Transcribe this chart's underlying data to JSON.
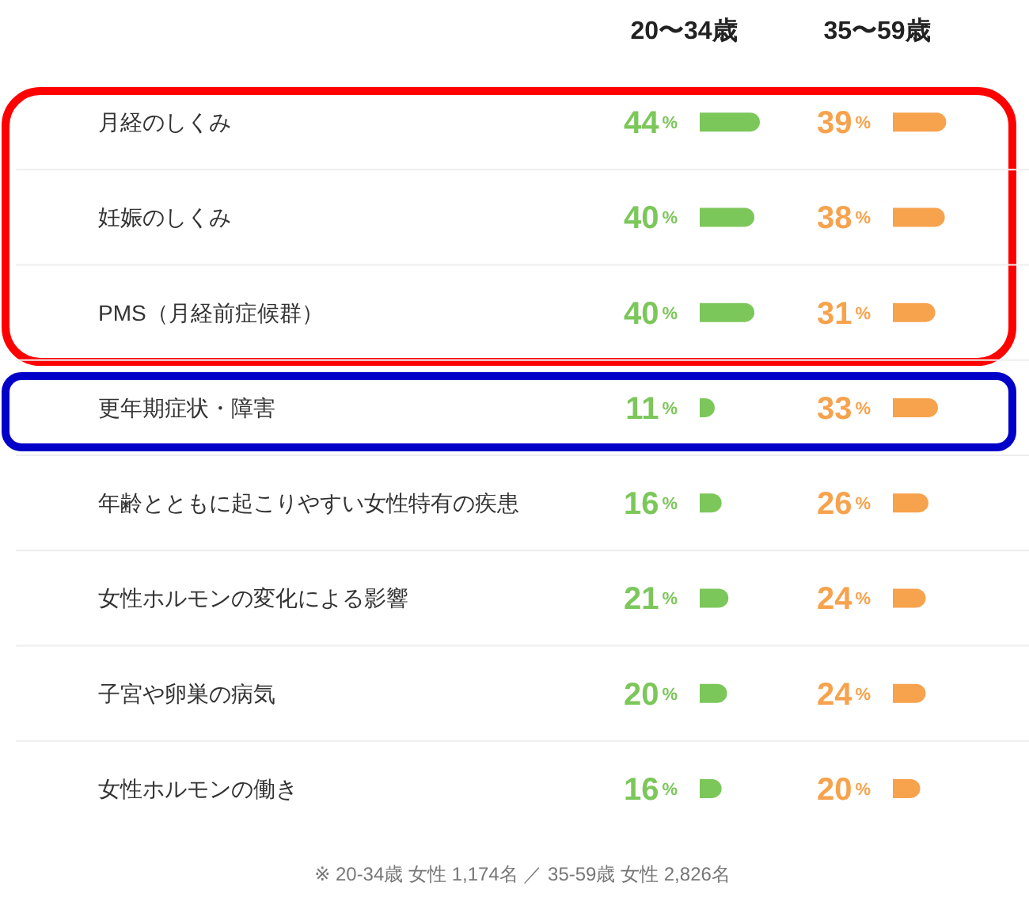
{
  "chart_data": [
    {
      "type": "bar",
      "orientation": "horizontal",
      "title": "20〜34歳",
      "tick_labels": "y",
      "grid": "y",
      "categories": [
        "月経のしくみ",
        "妊娠のしくみ",
        "PMS（月経前症候群）",
        "更年期症状・障害",
        "年齢とともに起こりやすい女性特有の疾患",
        "女性ホルモンの変化による影響",
        "子宮や卵巣の病気",
        "女性ホルモンの働き"
      ],
      "series": [
        {
          "color": "#7cc75a",
          "values": [
            44,
            40,
            40,
            11,
            16,
            21,
            20,
            16
          ],
          "value_labels": [
            "44%",
            "40%",
            "40%",
            "11%",
            "16%",
            "21%",
            "20%",
            "16%"
          ]
        }
      ],
      "annotations": [
        "※ 20-34歳 女性 1,174名 ／ 35-59歳 女性 2,826名"
      ]
    },
    {
      "type": "bar",
      "orientation": "horizontal",
      "title": "35〜59歳",
      "tick_labels": false,
      "grid": "y",
      "categories": [
        "月経のしくみ",
        "妊娠のしくみ",
        "PMS（月経前症候群）",
        "更年期症状・障害",
        "年齢とともに起こりやすい女性特有の疾患",
        "女性ホルモンの変化による影響",
        "子宮や卵巣の病気",
        "女性ホルモンの働き"
      ],
      "series": [
        {
          "color": "#f7a24d",
          "values": [
            39,
            38,
            31,
            33,
            26,
            24,
            24,
            20
          ],
          "value_labels": [
            "39%",
            "38%",
            "31%",
            "33%",
            "26%",
            "24%",
            "24%",
            "20%"
          ]
        }
      ]
    }
  ]
}
